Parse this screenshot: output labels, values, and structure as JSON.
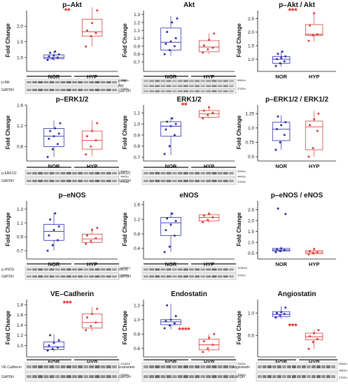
{
  "colors": {
    "nor": "#2b2fa8",
    "hyp": "#d8403a",
    "sig": "#e01010"
  },
  "chart_data": [
    {
      "type": "box",
      "title": "p–Akt",
      "ylabel": "Fold Change",
      "categories": [
        "NOR",
        "HYP"
      ],
      "ylim": [
        0.6,
        2.5
      ],
      "yticks": [
        1.0,
        1.5,
        2.0
      ],
      "series": [
        {
          "box": [
            0.96,
            1.0,
            1.08
          ],
          "whisker": [
            0.9,
            1.2
          ],
          "points": [
            0.92,
            0.97,
            1.0,
            1.03,
            1.06,
            1.1,
            1.15,
            1.19
          ]
        },
        {
          "box": [
            1.68,
            1.82,
            2.22
          ],
          "whisker": [
            1.35,
            2.6
          ],
          "points": [
            1.35,
            1.68,
            1.78,
            1.86,
            2.1,
            2.5
          ]
        }
      ],
      "significance": "**",
      "blot": {
        "rows": [
          "p-Akt",
          "GAPDH"
        ],
        "kda": [
          "56kDa",
          "37kDa"
        ]
      }
    },
    {
      "type": "box",
      "title": "Akt",
      "ylabel": "Fold Change",
      "categories": [
        "NOR",
        "HYP"
      ],
      "ylim": [
        0.6,
        1.35
      ],
      "yticks": [
        0.7,
        0.8,
        0.9,
        1.0,
        1.1,
        1.2,
        1.3
      ],
      "series": [
        {
          "box": [
            0.85,
            0.95,
            1.13
          ],
          "whisker": [
            0.78,
            1.28
          ],
          "points": [
            0.8,
            0.85,
            0.9,
            0.93,
            0.96,
            1.0,
            1.08,
            1.2,
            1.25
          ]
        },
        {
          "box": [
            0.83,
            0.89,
            0.97
          ],
          "whisker": [
            0.8,
            1.06
          ],
          "points": [
            0.82,
            0.86,
            0.88,
            0.91,
            0.98,
            1.06
          ]
        }
      ],
      "significance": "",
      "blot": {
        "rows": [
          "p-Akt",
          "Akt",
          "GAPDH"
        ],
        "kda": [
          "56kDa",
          "37kDa"
        ]
      }
    },
    {
      "type": "box",
      "title": "p–Akt / Akt",
      "ylabel": "Fold Change",
      "categories": [
        "NOR",
        "HYP"
      ],
      "ylim": [
        0.6,
        2.8
      ],
      "yticks": [
        1.0,
        1.5,
        2.0,
        2.5
      ],
      "series": [
        {
          "box": [
            0.85,
            1.0,
            1.1
          ],
          "whisker": [
            0.72,
            1.3
          ],
          "points": [
            0.75,
            0.85,
            0.92,
            1.0,
            1.05,
            1.1,
            1.2,
            1.28
          ]
        },
        {
          "box": [
            1.88,
            1.92,
            2.28
          ],
          "whisker": [
            1.65,
            2.75
          ],
          "points": [
            1.68,
            1.88,
            1.92,
            2.25,
            2.7
          ]
        }
      ],
      "significance": "***",
      "blot": null
    },
    {
      "type": "box",
      "title": "p–ERK1/2",
      "ylabel": "Fold Change",
      "categories": [
        "NOR",
        "HYP"
      ],
      "ylim": [
        0.55,
        1.6
      ],
      "yticks": [
        0.8,
        1.2,
        1.6
      ],
      "series": [
        {
          "box": [
            0.8,
            1.0,
            1.15
          ],
          "whisker": [
            0.6,
            1.3
          ],
          "points": [
            0.6,
            0.75,
            0.85,
            0.95,
            1.0,
            1.05,
            1.1,
            1.15,
            1.25
          ]
        },
        {
          "box": [
            0.75,
            0.92,
            1.1
          ],
          "whisker": [
            0.62,
            1.3
          ],
          "points": [
            0.65,
            0.8,
            0.92,
            1.0,
            1.1,
            1.25
          ]
        }
      ],
      "significance": "",
      "blot": {
        "rows": [
          "p-ERK1/2",
          "GAPDH"
        ],
        "kda": [
          "42kDa",
          "44kDa",
          "37kDa"
        ]
      }
    },
    {
      "type": "box",
      "title": "ERK1/2",
      "ylabel": "Fold Change",
      "categories": [
        "NOR",
        "HYP"
      ],
      "ylim": [
        0.68,
        1.17
      ],
      "yticks": [
        0.7,
        0.8,
        0.9,
        1.0,
        1.1
      ],
      "series": [
        {
          "box": [
            0.89,
            0.98,
            1.02
          ],
          "whisker": [
            0.72,
            1.06
          ],
          "points": [
            0.73,
            0.8,
            0.9,
            0.95,
            0.98,
            1.0,
            1.02,
            1.05
          ]
        },
        {
          "box": [
            1.06,
            1.09,
            1.12
          ],
          "whisker": [
            1.05,
            1.15
          ],
          "points": [
            1.05,
            1.08,
            1.1,
            1.12,
            1.15
          ]
        }
      ],
      "significance": "**",
      "blot": {
        "rows": [
          "ERK1/2",
          "GAPDH"
        ],
        "kda": [
          "42kDa",
          "44kDa",
          "37kDa"
        ]
      }
    },
    {
      "type": "box",
      "title": "p–ERK1/2 / ERK1/2",
      "ylabel": "Fold Change",
      "categories": [
        "NOR",
        "HYP"
      ],
      "ylim": [
        0.45,
        1.4
      ],
      "yticks": [
        0.5,
        0.75,
        1.0,
        1.25
      ],
      "series": [
        {
          "box": [
            0.78,
            0.98,
            1.1
          ],
          "whisker": [
            0.62,
            1.22
          ],
          "points": [
            0.62,
            0.75,
            0.88,
            0.98,
            1.05,
            1.1,
            1.2
          ]
        },
        {
          "box": [
            0.62,
            1.02,
            1.12
          ],
          "whisker": [
            0.5,
            1.3
          ],
          "points": [
            0.5,
            0.65,
            0.95,
            1.05,
            1.15,
            1.25
          ]
        }
      ],
      "significance": "",
      "blot": null
    },
    {
      "type": "box",
      "title": "p–eNOS",
      "ylabel": "Fold Change",
      "categories": [
        "NOR",
        "HYP"
      ],
      "ylim": [
        0.6,
        1.42
      ],
      "yticks": [
        0.7,
        0.9,
        1.1,
        1.3
      ],
      "series": [
        {
          "box": [
            0.85,
            0.98,
            1.08
          ],
          "whisker": [
            0.7,
            1.24
          ],
          "points": [
            0.7,
            0.78,
            0.85,
            0.92,
            1.0,
            1.05,
            1.15,
            1.24
          ]
        },
        {
          "box": [
            0.82,
            0.87,
            0.94
          ],
          "whisker": [
            0.8,
            1.03
          ],
          "points": [
            0.8,
            0.84,
            0.88,
            0.92,
            1.0,
            1.03
          ]
        }
      ],
      "significance": "",
      "blot": {
        "rows": [
          "p-eNOS",
          "GAPDH"
        ],
        "kda": [
          "140kDa",
          "37kDa"
        ]
      }
    },
    {
      "type": "box",
      "title": "eNOS",
      "ylabel": "Fold Change",
      "categories": [
        "NOR",
        "HYP"
      ],
      "ylim": [
        0.15,
        1.7
      ],
      "yticks": [
        0.4,
        0.8,
        1.2,
        1.6
      ],
      "series": [
        {
          "box": [
            0.75,
            1.1,
            1.25
          ],
          "whisker": [
            0.3,
            1.4
          ],
          "points": [
            0.3,
            0.45,
            0.75,
            0.9,
            1.05,
            1.15,
            1.22,
            1.35
          ]
        },
        {
          "box": [
            1.15,
            1.25,
            1.32
          ],
          "whisker": [
            1.1,
            1.38
          ],
          "points": [
            1.12,
            1.18,
            1.25,
            1.3,
            1.35
          ]
        }
      ],
      "significance": "",
      "blot": {
        "rows": [
          "eNOS",
          "GAPDH"
        ],
        "kda": [
          "140kDa",
          "37kDa"
        ]
      }
    },
    {
      "type": "box",
      "title": "p–eNOS / eNOS",
      "ylabel": "Fold Change",
      "categories": [
        "NOR",
        "HYP"
      ],
      "ylim": [
        0.3,
        2.9
      ],
      "yticks": [
        0.5,
        1.0,
        1.5,
        2.0,
        2.5
      ],
      "series": [
        {
          "box": [
            0.6,
            0.65,
            0.72
          ],
          "whisker": [
            0.55,
            0.8
          ],
          "points": [
            0.55,
            0.6,
            0.65,
            0.68,
            0.72,
            2.3,
            2.55
          ]
        },
        {
          "box": [
            0.48,
            0.55,
            0.62
          ],
          "whisker": [
            0.42,
            0.72
          ],
          "points": [
            0.45,
            0.5,
            0.55,
            0.6,
            0.7
          ]
        }
      ],
      "significance": "",
      "blot": null
    },
    {
      "type": "box",
      "title": "VE–Cadherin",
      "ylabel": "Fold Change",
      "categories": [
        "NOR",
        "HYP"
      ],
      "ylim": [
        0.8,
        1.9
      ],
      "yticks": [
        1.0,
        1.2,
        1.4,
        1.6,
        1.8
      ],
      "series": [
        {
          "box": [
            0.92,
            0.97,
            1.07
          ],
          "whisker": [
            0.88,
            1.22
          ],
          "points": [
            0.9,
            0.93,
            0.96,
            1.0,
            1.05,
            1.1,
            1.2
          ]
        },
        {
          "box": [
            1.34,
            1.45,
            1.62
          ],
          "whisker": [
            1.28,
            1.75
          ],
          "points": [
            1.3,
            1.38,
            1.45,
            1.55,
            1.62,
            1.72
          ]
        }
      ],
      "significance": "***",
      "blot": {
        "rows": [
          "VE-Cadherin",
          "GAPDH"
        ],
        "kda": [
          "130kDa",
          "37kDa"
        ]
      }
    },
    {
      "type": "box",
      "title": "Endostatin",
      "ylabel": "Fold Change",
      "categories": [
        "NOR",
        "HYP"
      ],
      "ylim": [
        0.5,
        1.28
      ],
      "yticks": [
        0.6,
        0.8,
        1.0,
        1.2
      ],
      "series": [
        {
          "box": [
            0.93,
            0.97,
            1.0
          ],
          "whisker": [
            0.86,
            1.22
          ],
          "points": [
            0.88,
            0.92,
            0.95,
            0.98,
            1.0,
            1.05,
            1.2
          ]
        },
        {
          "box": [
            0.58,
            0.65,
            0.73
          ],
          "whisker": [
            0.55,
            0.8
          ],
          "points": [
            0.55,
            0.6,
            0.65,
            0.7,
            0.75,
            0.8
          ]
        }
      ],
      "significance": "****",
      "blot": {
        "rows": [
          "Endostatin",
          "GAPDH"
        ],
        "kda": [
          "25kDa",
          "37kDa"
        ]
      }
    },
    {
      "type": "box",
      "title": "Angiostatin",
      "ylabel": "Fold Change",
      "categories": [
        "NOR",
        "HYP"
      ],
      "ylim": [
        0.05,
        1.3
      ],
      "yticks": [
        0.5,
        1.0
      ],
      "series": [
        {
          "box": [
            0.92,
            0.97,
            1.03
          ],
          "whisker": [
            0.88,
            1.15
          ],
          "points": [
            0.9,
            0.95,
            0.98,
            1.0,
            1.02,
            1.12
          ]
        },
        {
          "box": [
            0.4,
            0.47,
            0.55
          ],
          "whisker": [
            0.2,
            0.62
          ],
          "points": [
            0.2,
            0.35,
            0.42,
            0.48,
            0.55,
            0.62
          ]
        }
      ],
      "significance": "***",
      "blot": {
        "rows": [
          "Angiostatin",
          "GAPDH"
        ],
        "kda": [
          "50kDa",
          "38kDa",
          "37kDa"
        ]
      }
    }
  ]
}
